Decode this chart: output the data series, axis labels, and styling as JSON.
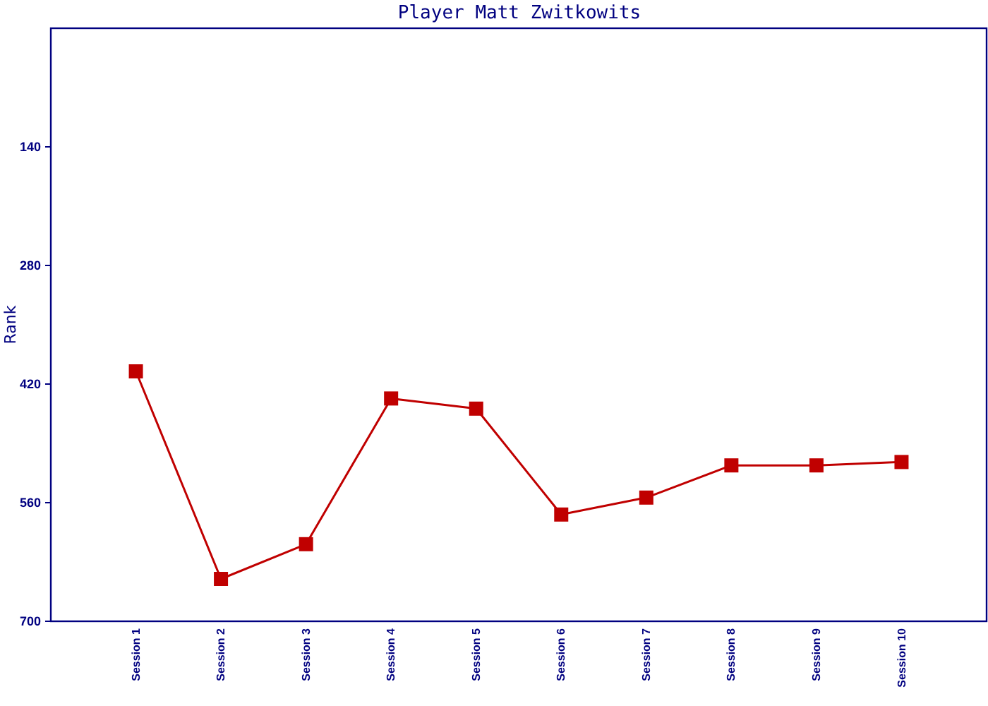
{
  "chart_data": {
    "type": "line",
    "title": "Player Matt Zwitkowits",
    "ylabel": "Rank",
    "categories": [
      "Session 1",
      "Session 2",
      "Session 3",
      "Session 4",
      "Session 5",
      "Session 6",
      "Session 7",
      "Session 8",
      "Session 9",
      "Session 10"
    ],
    "series": [
      {
        "color": "#c00000",
        "values": [
          405,
          650,
          609,
          437,
          449,
          574,
          554,
          516,
          516,
          512
        ]
      }
    ],
    "ylim": [
      700,
      0
    ],
    "yticks": [
      140,
      280,
      420,
      560,
      700
    ],
    "marker": "square",
    "line_style": "solid",
    "grid": false,
    "legend": false
  }
}
